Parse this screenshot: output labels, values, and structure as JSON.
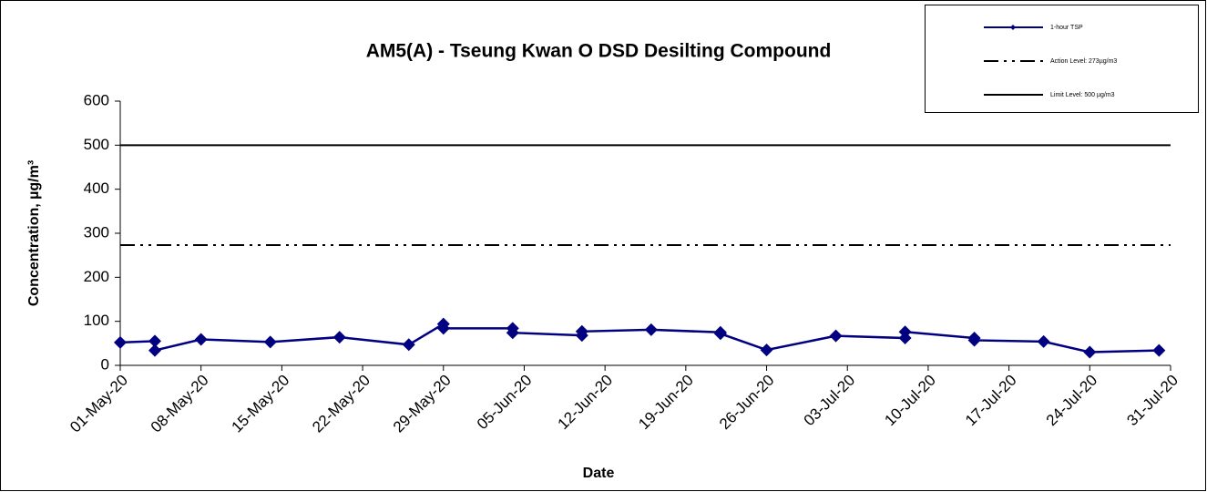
{
  "chart_data": {
    "type": "line",
    "title": "AM5(A) - Tseung Kwan O DSD Desilting Compound",
    "xlabel": "Date",
    "ylabel": "Concentration, µg/m³",
    "x": [
      "01-May-20",
      "04-May-20",
      "04-May-20",
      "08-May-20",
      "14-May-20",
      "20-May-20",
      "26-May-20",
      "29-May-20",
      "29-May-20",
      "04-Jun-20",
      "04-Jun-20",
      "10-Jun-20",
      "10-Jun-20",
      "16-Jun-20",
      "22-Jun-20",
      "22-Jun-20",
      "26-Jun-20",
      "02-Jul-20",
      "08-Jul-20",
      "08-Jul-20",
      "14-Jul-20",
      "14-Jul-20",
      "20-Jul-20",
      "24-Jul-20",
      "30-Jul-20"
    ],
    "series": [
      {
        "name": "1-hour TSP",
        "color": "#000080",
        "values": [
          52,
          55,
          34,
          59,
          53,
          64,
          47,
          94,
          84,
          84,
          74,
          68,
          77,
          81,
          75,
          72,
          35,
          67,
          62,
          76,
          62,
          57,
          54,
          30,
          34
        ]
      }
    ],
    "reference_lines": [
      {
        "name": "Action Level:  273µg/m3",
        "value": 273,
        "style": "dashdot",
        "color": "#000000"
      },
      {
        "name": "Limit Level: 500 µg/m3",
        "value": 500,
        "style": "solid",
        "color": "#000000"
      }
    ],
    "xlim": [
      "01-May-20",
      "31-Jul-20"
    ],
    "xticks": [
      "01-May-20",
      "08-May-20",
      "15-May-20",
      "22-May-20",
      "29-May-20",
      "05-Jun-20",
      "12-Jun-20",
      "19-Jun-20",
      "26-Jun-20",
      "03-Jul-20",
      "10-Jul-20",
      "17-Jul-20",
      "24-Jul-20",
      "31-Jul-20"
    ],
    "ylim": [
      0,
      600
    ],
    "yticks": [
      0,
      100,
      200,
      300,
      400,
      500,
      600
    ],
    "grid": false,
    "legend": "upper right"
  }
}
